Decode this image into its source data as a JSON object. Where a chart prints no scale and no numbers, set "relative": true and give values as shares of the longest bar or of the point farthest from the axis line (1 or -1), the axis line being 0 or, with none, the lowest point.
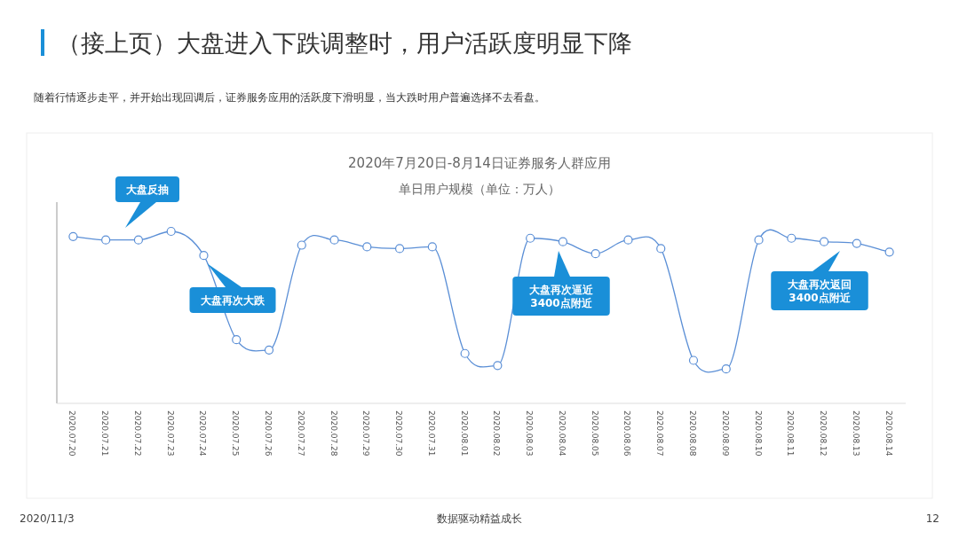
{
  "chart_data": {
    "type": "line",
    "title": "（接上页）大盘进入下跌调整时，用户活跃度明显下降",
    "subtitle": "随着行情逐步走平，并开始出现回调后，证券服务应用的活跃度下滑明显，当大跌时用户普遍选择不去看盘。",
    "categories": [
      "2020.07.20",
      "2020.07.21",
      "2020.07.22",
      "2020.07.23",
      "2020.07.24",
      "2020.07.25",
      "2020.07.26",
      "2020.07.27",
      "2020.07.28",
      "2020.07.29",
      "2020.07.30",
      "2020.07.31",
      "2020.08.01",
      "2020.08.02",
      "2020.08.03",
      "2020.08.04",
      "2020.08.05",
      "2020.08.06",
      "2020.08.07",
      "2020.08.08",
      "2020.08.09",
      "2020.08.10",
      "2020.08.11",
      "2020.08.12",
      "2020.08.13",
      "2020.08.14"
    ],
    "relative": true,
    "marker": "circle",
    "series": [
      {
        "color": "#5b8fd6",
        "values": [
          0.97,
          0.95,
          0.95,
          1,
          0.86,
          0.37,
          0.31,
          0.92,
          0.95,
          0.91,
          0.9,
          0.91,
          0.29,
          0.22,
          0.96,
          0.94,
          0.87,
          0.95,
          0.9,
          0.25,
          0.2,
          0.95,
          0.96,
          0.94,
          0.93,
          0.88
        ]
      }
    ],
    "annotations": [
      "2020年7月20日-8月14日证券服务人群应用",
      "单日用户规模（单位：万人）",
      "大盘反抽",
      "大盘再次大跌",
      "大盘再次逼近\n3400点附近",
      "大盘再次返回\n3400点附近",
      "2020/11/3",
      "数据驱动精益成长",
      "12"
    ]
  }
}
